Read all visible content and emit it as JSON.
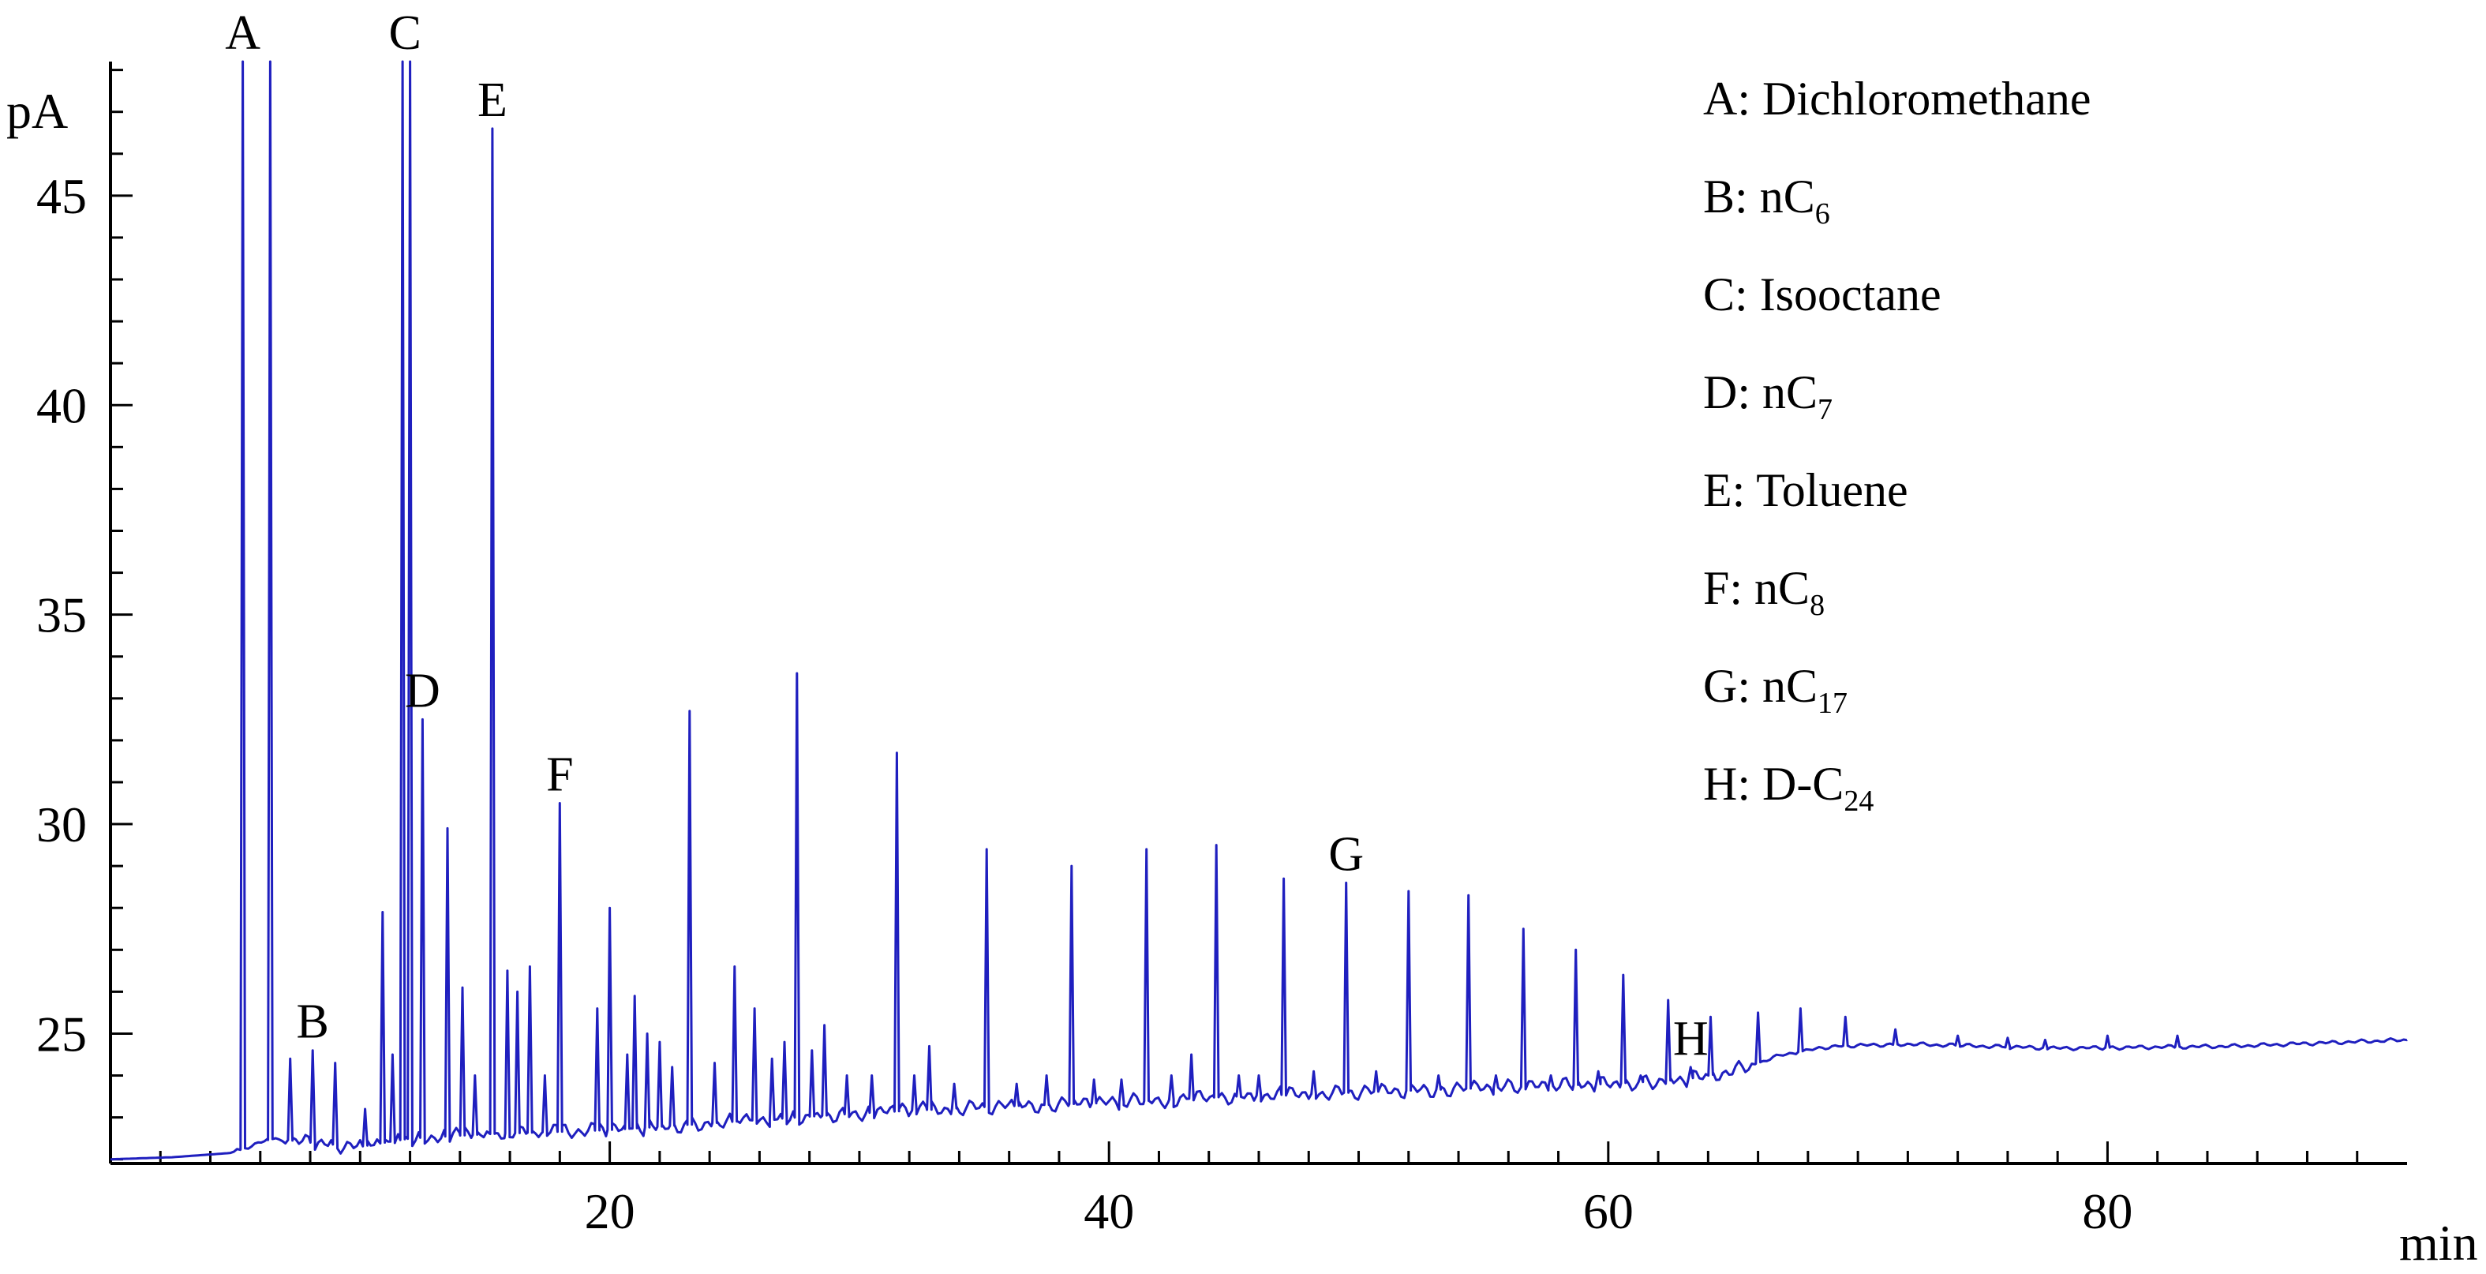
{
  "chart_data": {
    "type": "line",
    "title": "",
    "xlabel": "min",
    "ylabel": "pA",
    "xlim": [
      0,
      92
    ],
    "ylim": [
      21.9,
      48.2
    ],
    "x_ticks": [
      20,
      40,
      60,
      80
    ],
    "x_tick_labels": [
      "20",
      "40",
      "60",
      "80"
    ],
    "y_ticks": [
      25,
      30,
      35,
      40,
      45
    ],
    "y_tick_labels": [
      "25",
      "30",
      "35",
      "40",
      "45"
    ],
    "x_minor_step": 2,
    "y_minor_step": 1,
    "grid": false,
    "line_color": "#1f1fbf",
    "baseline": [
      [
        0,
        22.0
      ],
      [
        2.5,
        22.05
      ],
      [
        4.8,
        22.15
      ],
      [
        5.5,
        22.3
      ],
      [
        6.5,
        22.5
      ],
      [
        8,
        22.4
      ],
      [
        10,
        22.3
      ],
      [
        12,
        22.5
      ],
      [
        15,
        22.6
      ],
      [
        20,
        22.7
      ],
      [
        25,
        22.9
      ],
      [
        30,
        23.1
      ],
      [
        35,
        23.25
      ],
      [
        40,
        23.35
      ],
      [
        45,
        23.5
      ],
      [
        50,
        23.6
      ],
      [
        55,
        23.7
      ],
      [
        60,
        23.8
      ],
      [
        63,
        23.9
      ],
      [
        65,
        24.1
      ],
      [
        67,
        24.5
      ],
      [
        69,
        24.7
      ],
      [
        72,
        24.75
      ],
      [
        78,
        24.65
      ],
      [
        85,
        24.7
      ],
      [
        92,
        24.85
      ]
    ],
    "peaks": [
      {
        "x": 5.3,
        "y": 48.2
      },
      {
        "x": 6.4,
        "y": 48.2
      },
      {
        "x": 7.2,
        "y": 24.4
      },
      {
        "x": 8.1,
        "y": 24.6
      },
      {
        "x": 9.0,
        "y": 24.3
      },
      {
        "x": 10.2,
        "y": 23.2
      },
      {
        "x": 10.9,
        "y": 27.9
      },
      {
        "x": 11.3,
        "y": 24.5
      },
      {
        "x": 11.7,
        "y": 48.2
      },
      {
        "x": 12.0,
        "y": 48.2
      },
      {
        "x": 12.5,
        "y": 32.5
      },
      {
        "x": 13.5,
        "y": 29.9
      },
      {
        "x": 14.1,
        "y": 26.1
      },
      {
        "x": 14.6,
        "y": 24.0
      },
      {
        "x": 15.3,
        "y": 46.6
      },
      {
        "x": 15.9,
        "y": 26.5
      },
      {
        "x": 16.3,
        "y": 26.0
      },
      {
        "x": 16.8,
        "y": 26.6
      },
      {
        "x": 17.4,
        "y": 24.0
      },
      {
        "x": 18.0,
        "y": 30.5
      },
      {
        "x": 19.5,
        "y": 25.6
      },
      {
        "x": 20.0,
        "y": 28.0
      },
      {
        "x": 20.7,
        "y": 24.5
      },
      {
        "x": 21.0,
        "y": 25.9
      },
      {
        "x": 21.5,
        "y": 25.0
      },
      {
        "x": 22.0,
        "y": 24.8
      },
      {
        "x": 22.5,
        "y": 24.2
      },
      {
        "x": 23.2,
        "y": 32.7
      },
      {
        "x": 24.2,
        "y": 24.3
      },
      {
        "x": 25.0,
        "y": 26.6
      },
      {
        "x": 25.8,
        "y": 25.6
      },
      {
        "x": 26.5,
        "y": 24.4
      },
      {
        "x": 27.0,
        "y": 24.8
      },
      {
        "x": 27.5,
        "y": 33.6
      },
      {
        "x": 28.1,
        "y": 24.6
      },
      {
        "x": 28.6,
        "y": 25.2
      },
      {
        "x": 29.5,
        "y": 24.0
      },
      {
        "x": 30.5,
        "y": 24.0
      },
      {
        "x": 31.5,
        "y": 31.7
      },
      {
        "x": 32.2,
        "y": 24.0
      },
      {
        "x": 32.8,
        "y": 24.7
      },
      {
        "x": 33.8,
        "y": 23.8
      },
      {
        "x": 35.1,
        "y": 29.4
      },
      {
        "x": 36.3,
        "y": 23.8
      },
      {
        "x": 37.5,
        "y": 24.0
      },
      {
        "x": 38.5,
        "y": 29.0
      },
      {
        "x": 39.4,
        "y": 23.9
      },
      {
        "x": 40.5,
        "y": 23.9
      },
      {
        "x": 41.5,
        "y": 29.4
      },
      {
        "x": 42.5,
        "y": 24.0
      },
      {
        "x": 43.3,
        "y": 24.5
      },
      {
        "x": 44.3,
        "y": 29.5
      },
      {
        "x": 45.2,
        "y": 24.0
      },
      {
        "x": 46.0,
        "y": 24.0
      },
      {
        "x": 47.0,
        "y": 28.7
      },
      {
        "x": 48.2,
        "y": 24.1
      },
      {
        "x": 49.5,
        "y": 28.6
      },
      {
        "x": 50.7,
        "y": 24.1
      },
      {
        "x": 52.0,
        "y": 28.4
      },
      {
        "x": 53.2,
        "y": 24.0
      },
      {
        "x": 54.4,
        "y": 28.3
      },
      {
        "x": 55.5,
        "y": 24.0
      },
      {
        "x": 56.6,
        "y": 27.5
      },
      {
        "x": 57.7,
        "y": 24.0
      },
      {
        "x": 58.7,
        "y": 27.0
      },
      {
        "x": 59.6,
        "y": 24.1
      },
      {
        "x": 60.6,
        "y": 26.4
      },
      {
        "x": 61.3,
        "y": 24.0
      },
      {
        "x": 62.4,
        "y": 25.8
      },
      {
        "x": 63.3,
        "y": 24.2
      },
      {
        "x": 64.1,
        "y": 25.4
      },
      {
        "x": 66.0,
        "y": 25.5
      },
      {
        "x": 67.7,
        "y": 25.6
      },
      {
        "x": 69.5,
        "y": 25.4
      },
      {
        "x": 71.5,
        "y": 25.1
      },
      {
        "x": 74.0,
        "y": 24.95
      },
      {
        "x": 76.0,
        "y": 24.9
      },
      {
        "x": 77.5,
        "y": 24.85
      },
      {
        "x": 80.0,
        "y": 24.95
      },
      {
        "x": 82.8,
        "y": 24.95
      }
    ],
    "annotations": [
      {
        "label": "A",
        "x": 5.3,
        "y": 48.2
      },
      {
        "label": "B",
        "x": 8.1,
        "y": 24.6
      },
      {
        "label": "C",
        "x": 11.8,
        "y": 48.2
      },
      {
        "label": "D",
        "x": 12.5,
        "y": 32.5
      },
      {
        "label": "E",
        "x": 15.3,
        "y": 46.6
      },
      {
        "label": "F",
        "x": 18.0,
        "y": 30.5
      },
      {
        "label": "G",
        "x": 49.5,
        "y": 28.6
      },
      {
        "label": "H",
        "x": 63.3,
        "y": 24.2
      }
    ],
    "legend": [
      {
        "key": "A",
        "name": "Dichloromethane",
        "sub": ""
      },
      {
        "key": "B",
        "name": "nC",
        "sub": "6"
      },
      {
        "key": "C",
        "name": "Isooctane",
        "sub": ""
      },
      {
        "key": "D",
        "name": "nC",
        "sub": "7"
      },
      {
        "key": "E",
        "name": "Toluene",
        "sub": ""
      },
      {
        "key": "F",
        "name": "nC",
        "sub": "8"
      },
      {
        "key": "G",
        "name": "nC",
        "sub": "17"
      },
      {
        "key": "H",
        "name": "D-C",
        "sub": "24"
      }
    ],
    "legend_position": "top-right"
  }
}
